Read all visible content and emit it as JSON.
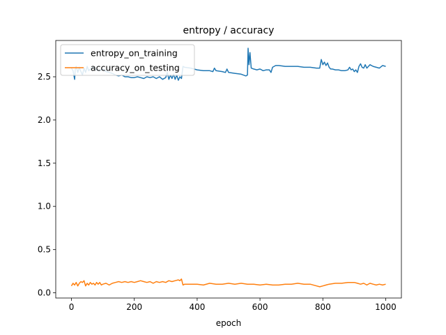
{
  "chart_data": {
    "type": "line",
    "title": "entropy / accuracy",
    "xlabel": "epoch",
    "ylabel": "",
    "xlim": [
      -50,
      1050
    ],
    "ylim": [
      -0.06,
      2.92
    ],
    "xticks": [
      0,
      200,
      400,
      600,
      800,
      1000
    ],
    "xtick_labels": [
      "0",
      "200",
      "400",
      "600",
      "800",
      "1000"
    ],
    "yticks": [
      0.0,
      0.5,
      1.0,
      1.5,
      2.0,
      2.5
    ],
    "ytick_labels": [
      "0.0",
      "0.5",
      "1.0",
      "1.5",
      "2.0",
      "2.5"
    ],
    "grid": false,
    "legend_position": "upper-left",
    "series": [
      {
        "name": "entropy_on_training",
        "color": "#1f77b4",
        "points": [
          [
            0,
            2.6
          ],
          [
            5,
            2.57
          ],
          [
            10,
            2.47
          ],
          [
            12,
            2.58
          ],
          [
            15,
            2.62
          ],
          [
            20,
            2.55
          ],
          [
            25,
            2.61
          ],
          [
            30,
            2.56
          ],
          [
            35,
            2.52
          ],
          [
            40,
            2.6
          ],
          [
            45,
            2.55
          ],
          [
            50,
            2.62
          ],
          [
            55,
            2.57
          ],
          [
            60,
            2.59
          ],
          [
            70,
            2.61
          ],
          [
            80,
            2.58
          ],
          [
            90,
            2.57
          ],
          [
            100,
            2.59
          ],
          [
            110,
            2.56
          ],
          [
            120,
            2.55
          ],
          [
            130,
            2.54
          ],
          [
            140,
            2.52
          ],
          [
            150,
            2.51
          ],
          [
            160,
            2.52
          ],
          [
            170,
            2.5
          ],
          [
            180,
            2.5
          ],
          [
            190,
            2.49
          ],
          [
            200,
            2.49
          ],
          [
            210,
            2.5
          ],
          [
            220,
            2.49
          ],
          [
            230,
            2.48
          ],
          [
            240,
            2.5
          ],
          [
            250,
            2.49
          ],
          [
            260,
            2.5
          ],
          [
            270,
            2.48
          ],
          [
            280,
            2.5
          ],
          [
            290,
            2.47
          ],
          [
            300,
            2.49
          ],
          [
            305,
            2.55
          ],
          [
            310,
            2.47
          ],
          [
            315,
            2.52
          ],
          [
            320,
            2.48
          ],
          [
            325,
            2.53
          ],
          [
            330,
            2.47
          ],
          [
            335,
            2.52
          ],
          [
            340,
            2.46
          ],
          [
            345,
            2.5
          ],
          [
            350,
            2.48
          ],
          [
            355,
            2.62
          ],
          [
            360,
            2.61
          ],
          [
            380,
            2.6
          ],
          [
            400,
            2.58
          ],
          [
            420,
            2.57
          ],
          [
            440,
            2.57
          ],
          [
            450,
            2.56
          ],
          [
            455,
            2.6
          ],
          [
            460,
            2.57
          ],
          [
            480,
            2.56
          ],
          [
            490,
            2.55
          ],
          [
            495,
            2.59
          ],
          [
            500,
            2.55
          ],
          [
            520,
            2.54
          ],
          [
            540,
            2.53
          ],
          [
            555,
            2.51
          ],
          [
            560,
            2.52
          ],
          [
            562,
            2.83
          ],
          [
            565,
            2.64
          ],
          [
            568,
            2.78
          ],
          [
            572,
            2.6
          ],
          [
            580,
            2.59
          ],
          [
            590,
            2.58
          ],
          [
            600,
            2.59
          ],
          [
            610,
            2.57
          ],
          [
            620,
            2.58
          ],
          [
            630,
            2.58
          ],
          [
            635,
            2.55
          ],
          [
            640,
            2.61
          ],
          [
            650,
            2.63
          ],
          [
            660,
            2.63
          ],
          [
            680,
            2.62
          ],
          [
            700,
            2.62
          ],
          [
            720,
            2.62
          ],
          [
            740,
            2.61
          ],
          [
            760,
            2.61
          ],
          [
            780,
            2.6
          ],
          [
            790,
            2.6
          ],
          [
            795,
            2.7
          ],
          [
            800,
            2.64
          ],
          [
            805,
            2.67
          ],
          [
            810,
            2.63
          ],
          [
            815,
            2.66
          ],
          [
            820,
            2.61
          ],
          [
            825,
            2.59
          ],
          [
            830,
            2.59
          ],
          [
            840,
            2.58
          ],
          [
            850,
            2.58
          ],
          [
            860,
            2.57
          ],
          [
            870,
            2.57
          ],
          [
            880,
            2.58
          ],
          [
            885,
            2.61
          ],
          [
            890,
            2.58
          ],
          [
            895,
            2.59
          ],
          [
            900,
            2.56
          ],
          [
            905,
            2.58
          ],
          [
            910,
            2.55
          ],
          [
            915,
            2.62
          ],
          [
            920,
            2.65
          ],
          [
            925,
            2.61
          ],
          [
            930,
            2.6
          ],
          [
            935,
            2.64
          ],
          [
            940,
            2.6
          ],
          [
            945,
            2.62
          ],
          [
            950,
            2.64
          ],
          [
            960,
            2.62
          ],
          [
            970,
            2.61
          ],
          [
            980,
            2.6
          ],
          [
            990,
            2.63
          ],
          [
            1000,
            2.62
          ]
        ]
      },
      {
        "name": "accuracy_on_testing",
        "color": "#ff7f0e",
        "points": [
          [
            0,
            0.08
          ],
          [
            5,
            0.11
          ],
          [
            10,
            0.09
          ],
          [
            15,
            0.12
          ],
          [
            20,
            0.08
          ],
          [
            25,
            0.11
          ],
          [
            30,
            0.13
          ],
          [
            35,
            0.12
          ],
          [
            40,
            0.14
          ],
          [
            45,
            0.08
          ],
          [
            50,
            0.11
          ],
          [
            55,
            0.09
          ],
          [
            60,
            0.12
          ],
          [
            65,
            0.1
          ],
          [
            70,
            0.11
          ],
          [
            75,
            0.09
          ],
          [
            80,
            0.12
          ],
          [
            85,
            0.1
          ],
          [
            90,
            0.12
          ],
          [
            95,
            0.09
          ],
          [
            100,
            0.1
          ],
          [
            110,
            0.11
          ],
          [
            120,
            0.09
          ],
          [
            130,
            0.11
          ],
          [
            140,
            0.12
          ],
          [
            150,
            0.13
          ],
          [
            160,
            0.12
          ],
          [
            170,
            0.13
          ],
          [
            180,
            0.12
          ],
          [
            190,
            0.13
          ],
          [
            200,
            0.12
          ],
          [
            210,
            0.13
          ],
          [
            220,
            0.14
          ],
          [
            230,
            0.13
          ],
          [
            240,
            0.12
          ],
          [
            250,
            0.13
          ],
          [
            260,
            0.11
          ],
          [
            270,
            0.13
          ],
          [
            280,
            0.12
          ],
          [
            290,
            0.13
          ],
          [
            300,
            0.12
          ],
          [
            310,
            0.14
          ],
          [
            320,
            0.13
          ],
          [
            330,
            0.14
          ],
          [
            340,
            0.15
          ],
          [
            345,
            0.14
          ],
          [
            350,
            0.16
          ],
          [
            355,
            0.09
          ],
          [
            360,
            0.1
          ],
          [
            380,
            0.1
          ],
          [
            400,
            0.1
          ],
          [
            420,
            0.09
          ],
          [
            440,
            0.11
          ],
          [
            460,
            0.1
          ],
          [
            480,
            0.1
          ],
          [
            500,
            0.11
          ],
          [
            520,
            0.1
          ],
          [
            540,
            0.11
          ],
          [
            560,
            0.1
          ],
          [
            580,
            0.1
          ],
          [
            600,
            0.09
          ],
          [
            620,
            0.1
          ],
          [
            640,
            0.09
          ],
          [
            660,
            0.09
          ],
          [
            680,
            0.1
          ],
          [
            700,
            0.1
          ],
          [
            720,
            0.11
          ],
          [
            740,
            0.1
          ],
          [
            760,
            0.1
          ],
          [
            780,
            0.08
          ],
          [
            790,
            0.07
          ],
          [
            800,
            0.08
          ],
          [
            810,
            0.09
          ],
          [
            820,
            0.1
          ],
          [
            840,
            0.11
          ],
          [
            860,
            0.11
          ],
          [
            880,
            0.12
          ],
          [
            900,
            0.12
          ],
          [
            910,
            0.11
          ],
          [
            920,
            0.1
          ],
          [
            930,
            0.11
          ],
          [
            940,
            0.09
          ],
          [
            950,
            0.11
          ],
          [
            960,
            0.1
          ],
          [
            970,
            0.09
          ],
          [
            980,
            0.1
          ],
          [
            990,
            0.09
          ],
          [
            1000,
            0.1
          ]
        ]
      }
    ]
  }
}
